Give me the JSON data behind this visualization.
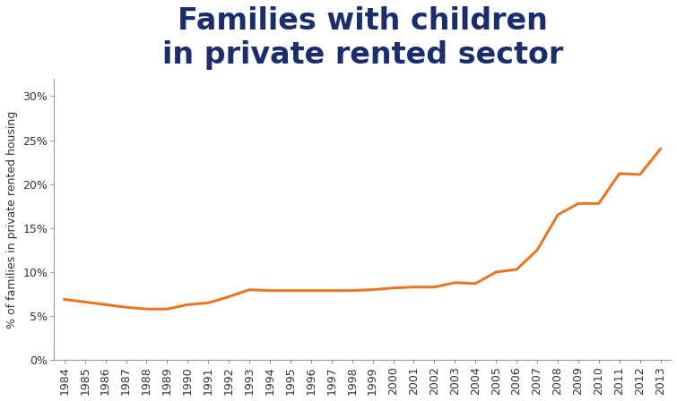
{
  "title": "Families with children\nin private rented sector",
  "ylabel": "% of families in private rented housing",
  "years": [
    1984,
    1985,
    1986,
    1987,
    1988,
    1989,
    1990,
    1991,
    1992,
    1993,
    1994,
    1995,
    1996,
    1997,
    1998,
    1999,
    2000,
    2001,
    2002,
    2003,
    2004,
    2005,
    2006,
    2007,
    2008,
    2009,
    2010,
    2011,
    2012,
    2013
  ],
  "values": [
    0.069,
    0.066,
    0.063,
    0.06,
    0.058,
    0.058,
    0.063,
    0.065,
    0.072,
    0.08,
    0.079,
    0.079,
    0.079,
    0.079,
    0.079,
    0.08,
    0.082,
    0.083,
    0.083,
    0.088,
    0.087,
    0.1,
    0.103,
    0.125,
    0.165,
    0.178,
    0.178,
    0.212,
    0.211,
    0.24
  ],
  "line_color": "#E87722",
  "line_width": 2.2,
  "ylim": [
    0,
    0.32
  ],
  "yticks": [
    0.0,
    0.05,
    0.1,
    0.15,
    0.2,
    0.25,
    0.3
  ],
  "ytick_labels": [
    "0%",
    "5%",
    "10%",
    "15%",
    "20%",
    "25%",
    "30%"
  ],
  "title_color": "#1B2D6B",
  "title_fontsize": 24,
  "ylabel_fontsize": 9,
  "ylabel_color": "#333333",
  "tick_label_fontsize": 9,
  "tick_label_color": "#333333",
  "background_color": "#ffffff",
  "spine_color": "#999999",
  "figure_width": 7.55,
  "figure_height": 4.48
}
